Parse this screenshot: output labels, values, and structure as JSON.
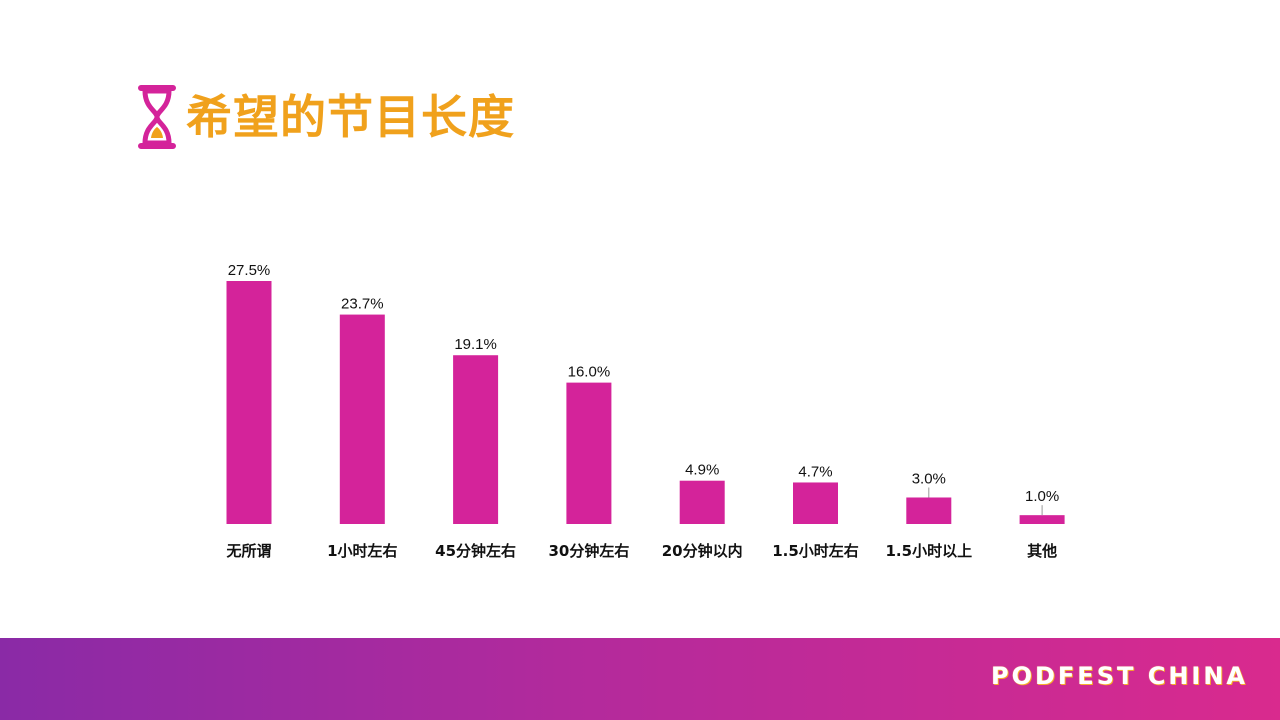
{
  "page": {
    "title": "希望的节目长度",
    "brand": "PODFEST CHINA",
    "accent_color": "#f0a11c",
    "bar_color": "#d4239a",
    "footer_colors": [
      "#8a2aa6",
      "#d92a8e"
    ],
    "title_icon": "hourglass-icon"
  },
  "chart_data": {
    "type": "bar",
    "categories": [
      "无所谓",
      "1小时左右",
      "45分钟左右",
      "30分钟左右",
      "20分钟以内",
      "1.5小时左右",
      "1.5小时以上",
      "其他"
    ],
    "values": [
      27.5,
      23.7,
      19.1,
      16.0,
      4.9,
      4.7,
      3.0,
      1.0
    ],
    "data_labels": [
      "27.5%",
      "23.7%",
      "19.1%",
      "16.0%",
      "4.9%",
      "4.7%",
      "3.0%",
      "1.0%"
    ],
    "ylim": [
      0,
      27.5
    ],
    "grid": false,
    "legend": "none"
  }
}
